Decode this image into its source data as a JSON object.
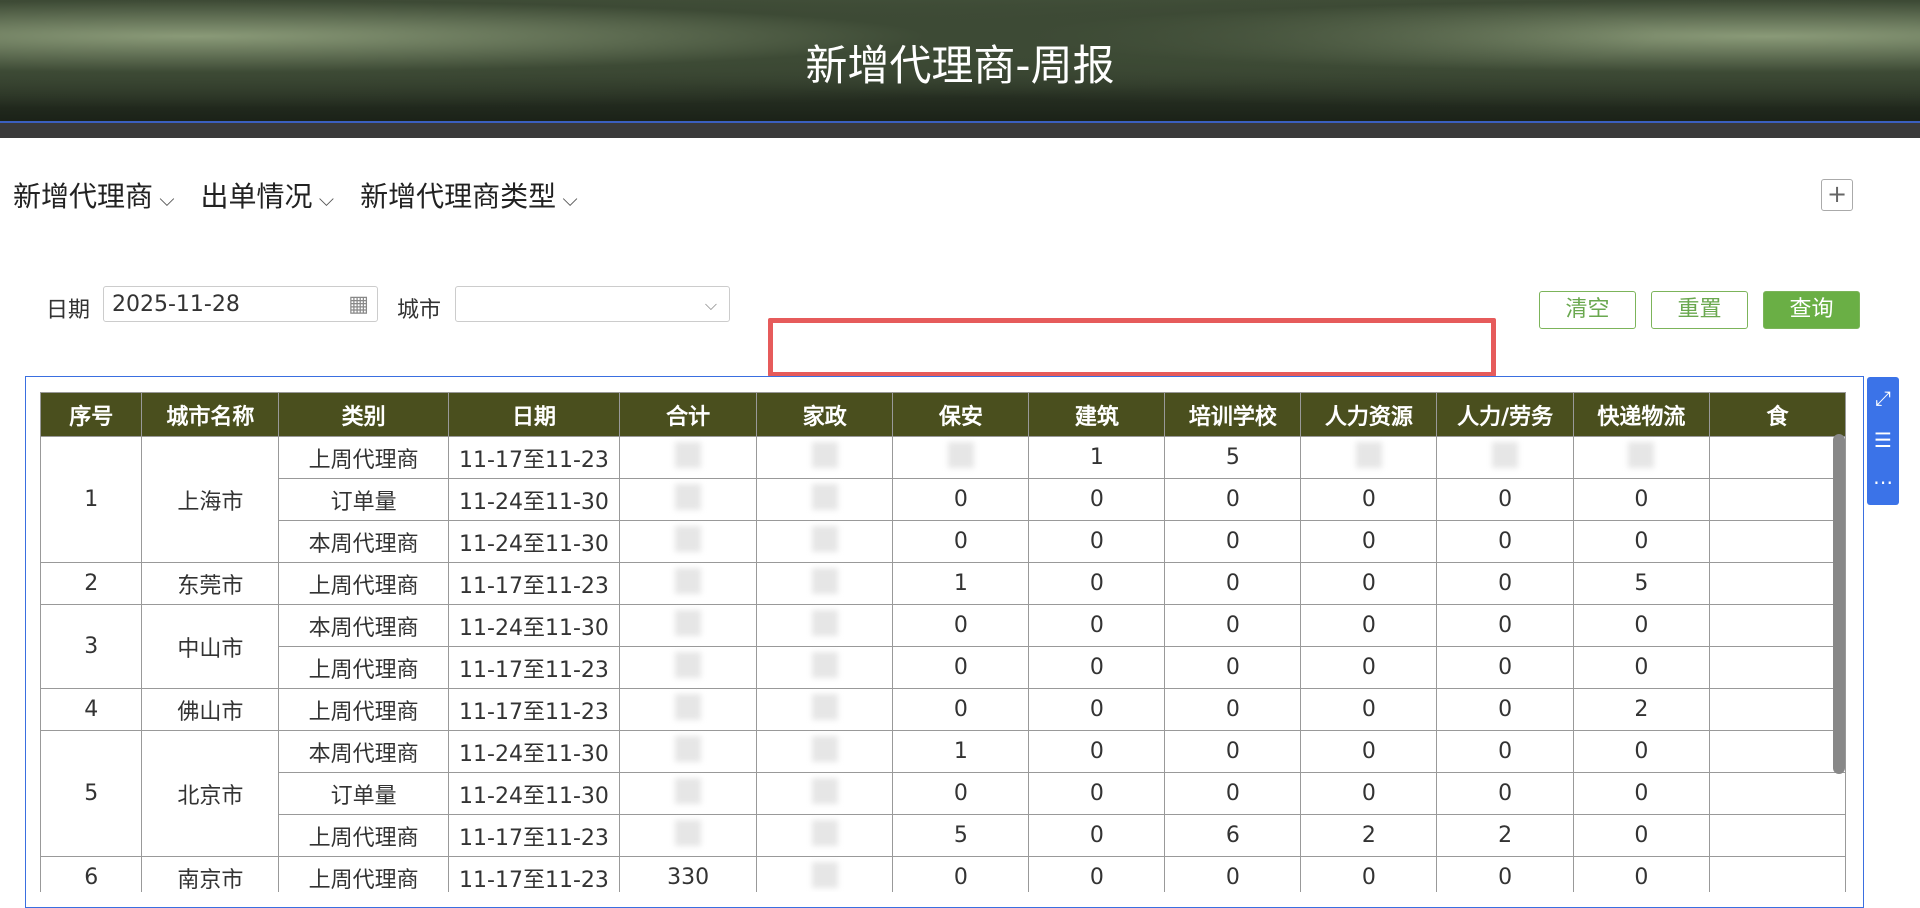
{
  "header": {
    "title": "新增代理商-周报"
  },
  "tabs": [
    "新增代理商",
    "出单情况",
    "新增代理商类型"
  ],
  "filters": {
    "date_label": "日期",
    "date_value": "2025-11-28",
    "city_label": "城市"
  },
  "buttons": [
    "清空",
    "重置",
    "查询"
  ],
  "table": {
    "columns": [
      "序号",
      "城市名称",
      "类别",
      "日期",
      "合计",
      "家政",
      "保安",
      "建筑",
      "培训学校",
      "人力资源",
      "人力/劳务",
      "快递物流",
      "食"
    ],
    "groups": [
      {
        "index": 1,
        "city": "上海市",
        "rows": [
          [
            "上周代理商",
            "11-17至11-23",
            null,
            null,
            null,
            1,
            5,
            null,
            null,
            null
          ],
          [
            "订单量",
            "11-24至11-30",
            null,
            null,
            0,
            0,
            0,
            0,
            0,
            0
          ],
          [
            "本周代理商",
            "11-24至11-30",
            null,
            null,
            0,
            0,
            0,
            0,
            0,
            0
          ]
        ]
      },
      {
        "index": 2,
        "city": "东莞市",
        "rows": [
          [
            "上周代理商",
            "11-17至11-23",
            null,
            null,
            1,
            0,
            0,
            0,
            0,
            5
          ]
        ]
      },
      {
        "index": 3,
        "city": "中山市",
        "rows": [
          [
            "本周代理商",
            "11-24至11-30",
            null,
            null,
            0,
            0,
            0,
            0,
            0,
            0
          ],
          [
            "上周代理商",
            "11-17至11-23",
            null,
            null,
            0,
            0,
            0,
            0,
            0,
            0
          ]
        ]
      },
      {
        "index": 4,
        "city": "佛山市",
        "rows": [
          [
            "上周代理商",
            "11-17至11-23",
            null,
            null,
            0,
            0,
            0,
            0,
            0,
            2
          ]
        ]
      },
      {
        "index": 5,
        "city": "北京市",
        "rows": [
          [
            "本周代理商",
            "11-24至11-30",
            null,
            null,
            1,
            0,
            0,
            0,
            0,
            0
          ],
          [
            "订单量",
            "11-24至11-30",
            null,
            null,
            0,
            0,
            0,
            0,
            0,
            0
          ],
          [
            "上周代理商",
            "11-17至11-23",
            null,
            null,
            5,
            0,
            6,
            2,
            2,
            0
          ]
        ]
      },
      {
        "index": 6,
        "city": "南京市",
        "rows": [
          [
            "上周代理商",
            "11-17至11-23",
            330,
            null,
            0,
            0,
            0,
            0,
            0,
            0
          ]
        ]
      }
    ]
  }
}
